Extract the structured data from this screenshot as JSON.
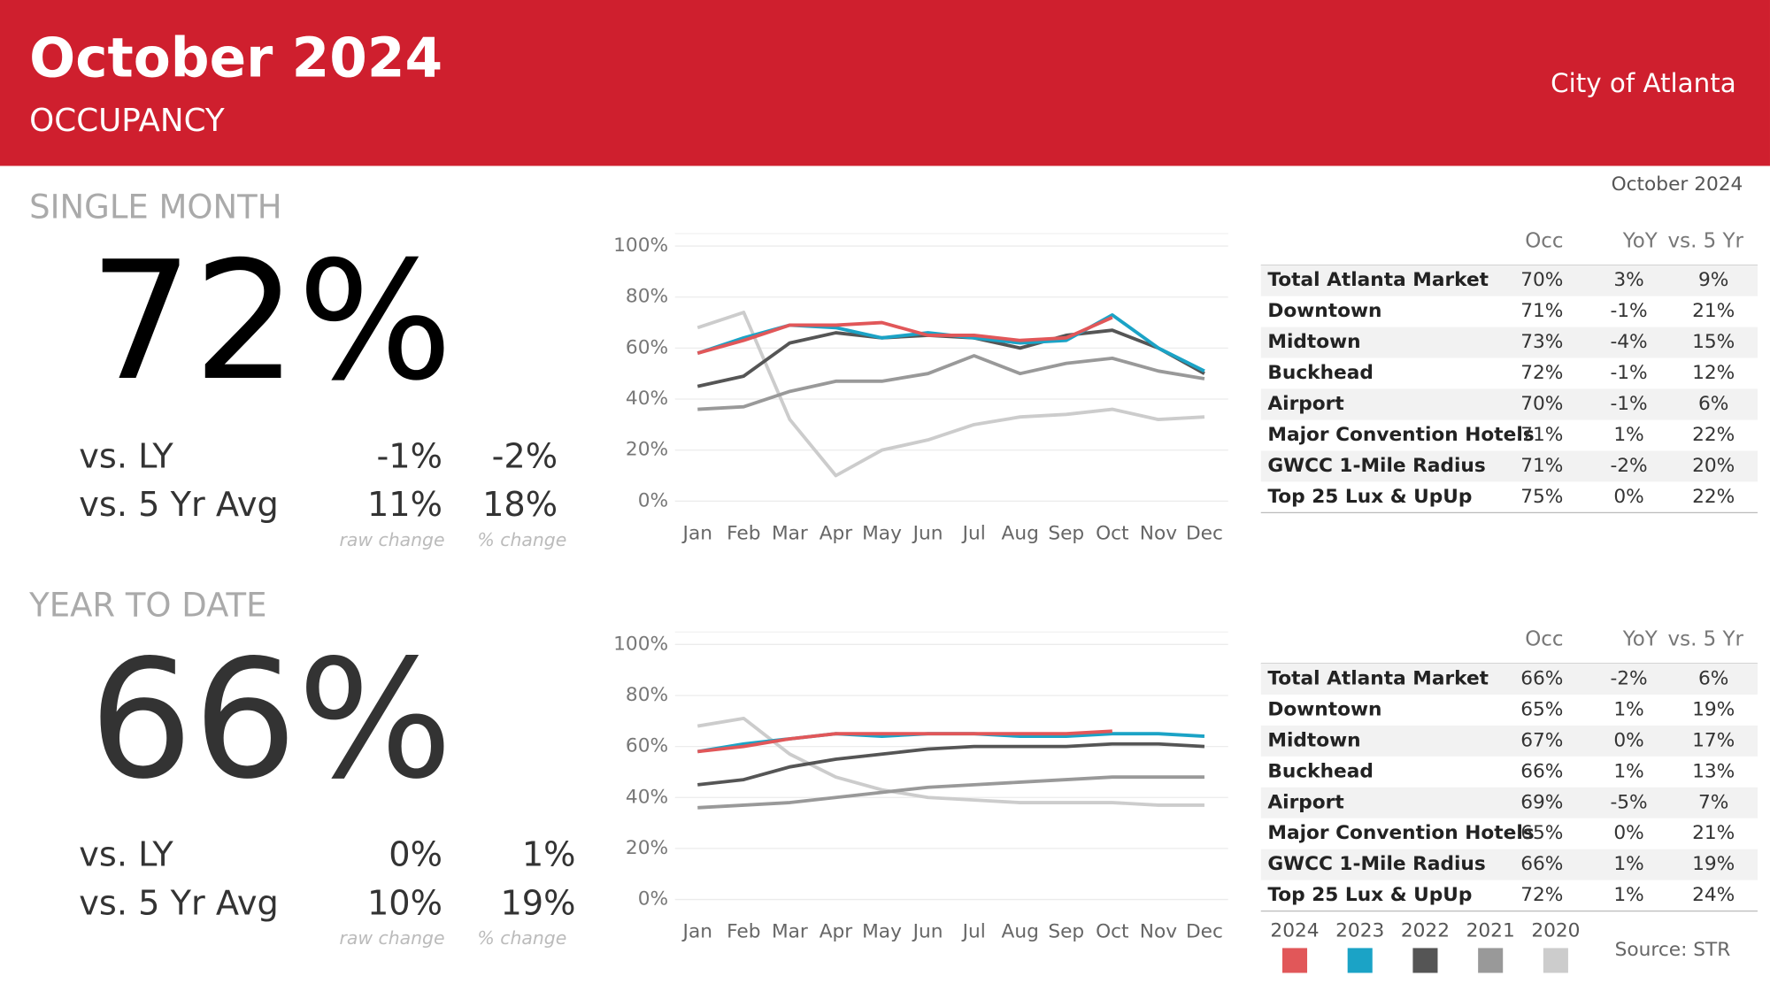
{
  "header": {
    "title": "October 2024",
    "subtitle": "OCCUPANCY",
    "location": "City of Atlanta"
  },
  "date_label": "October 2024",
  "source": "Source: STR",
  "sections": [
    {
      "heading": "SINGLE MONTH",
      "big_value": "72%",
      "rows": [
        {
          "label": "vs. LY",
          "raw": "-1%",
          "pct": "-2%"
        },
        {
          "label": "vs. 5 Yr Avg",
          "raw": "11%",
          "pct": "18%"
        }
      ],
      "raw_caption": "raw change",
      "pct_caption": "% change",
      "table": {
        "columns": [
          "Occ",
          "YoY",
          "vs. 5 Yr"
        ],
        "rows": [
          [
            "Total Atlanta Market",
            "70%",
            "3%",
            "9%"
          ],
          [
            "Downtown",
            "71%",
            "-1%",
            "21%"
          ],
          [
            "Midtown",
            "73%",
            "-4%",
            "15%"
          ],
          [
            "Buckhead",
            "72%",
            "-1%",
            "12%"
          ],
          [
            "Airport",
            "70%",
            "-1%",
            "6%"
          ],
          [
            "Major Convention Hotels",
            "71%",
            "1%",
            "22%"
          ],
          [
            "GWCC 1-Mile Radius",
            "71%",
            "-2%",
            "20%"
          ],
          [
            "Top 25 Lux & UpUp",
            "75%",
            "0%",
            "22%"
          ]
        ]
      }
    },
    {
      "heading": "YEAR TO DATE",
      "big_value": "66%",
      "rows": [
        {
          "label": "vs. LY",
          "raw": "0%",
          "pct": "1%"
        },
        {
          "label": "vs. 5 Yr Avg",
          "raw": "10%",
          "pct": "19%"
        }
      ],
      "raw_caption": "raw change",
      "pct_caption": "% change",
      "table": {
        "columns": [
          "Occ",
          "YoY",
          "vs. 5 Yr"
        ],
        "rows": [
          [
            "Total Atlanta Market",
            "66%",
            "-2%",
            "6%"
          ],
          [
            "Downtown",
            "65%",
            "1%",
            "19%"
          ],
          [
            "Midtown",
            "67%",
            "0%",
            "17%"
          ],
          [
            "Buckhead",
            "66%",
            "1%",
            "13%"
          ],
          [
            "Airport",
            "69%",
            "-5%",
            "7%"
          ],
          [
            "Major Convention Hotels",
            "65%",
            "0%",
            "21%"
          ],
          [
            "GWCC 1-Mile Radius",
            "66%",
            "1%",
            "19%"
          ],
          [
            "Top 25 Lux & UpUp",
            "72%",
            "1%",
            "24%"
          ]
        ]
      }
    }
  ],
  "chart_data": [
    {
      "type": "line",
      "categories": [
        "Jan",
        "Feb",
        "Mar",
        "Apr",
        "May",
        "Jun",
        "Jul",
        "Aug",
        "Sep",
        "Oct",
        "Nov",
        "Dec"
      ],
      "ylim": [
        0,
        100
      ],
      "yticks": [
        {
          "value": 0,
          "label": "0%"
        },
        {
          "value": 20,
          "label": "20%"
        },
        {
          "value": 40,
          "label": "40%"
        },
        {
          "value": 60,
          "label": "60%"
        },
        {
          "value": 80,
          "label": "80%"
        },
        {
          "value": 100,
          "label": "100%"
        }
      ],
      "grid": true,
      "series": [
        {
          "color": "#e15759",
          "values": [
            58,
            63,
            69,
            69,
            70,
            65,
            65,
            63,
            64,
            72,
            null,
            null
          ]
        },
        {
          "color": "#1ba3c6",
          "values": [
            58,
            64,
            69,
            68,
            64,
            66,
            64,
            62,
            63,
            73,
            60,
            51
          ]
        },
        {
          "color": "#555555",
          "values": [
            45,
            49,
            62,
            66,
            64,
            65,
            64,
            60,
            65,
            67,
            60,
            50
          ]
        },
        {
          "color": "#999999",
          "values": [
            36,
            37,
            43,
            47,
            47,
            50,
            57,
            50,
            54,
            56,
            51,
            48
          ]
        },
        {
          "color": "#cccccc",
          "values": [
            68,
            74,
            32,
            10,
            20,
            24,
            30,
            33,
            34,
            36,
            32,
            33
          ]
        }
      ]
    },
    {
      "type": "line",
      "categories": [
        "Jan",
        "Feb",
        "Mar",
        "Apr",
        "May",
        "Jun",
        "Jul",
        "Aug",
        "Sep",
        "Oct",
        "Nov",
        "Dec"
      ],
      "ylim": [
        0,
        100
      ],
      "yticks": [
        {
          "value": 0,
          "label": "0%"
        },
        {
          "value": 20,
          "label": "20%"
        },
        {
          "value": 40,
          "label": "40%"
        },
        {
          "value": 60,
          "label": "60%"
        },
        {
          "value": 80,
          "label": "80%"
        },
        {
          "value": 100,
          "label": "100%"
        }
      ],
      "grid": true,
      "series": [
        {
          "name": "2024",
          "color": "#e15759",
          "values": [
            58,
            60,
            63,
            65,
            65,
            65,
            65,
            65,
            65,
            66,
            null,
            null
          ]
        },
        {
          "name": "2023",
          "color": "#1ba3c6",
          "values": [
            58,
            61,
            63,
            65,
            64,
            65,
            65,
            64,
            64,
            65,
            65,
            64
          ]
        },
        {
          "name": "2022",
          "color": "#555555",
          "values": [
            45,
            47,
            52,
            55,
            57,
            59,
            60,
            60,
            60,
            61,
            61,
            60
          ]
        },
        {
          "name": "2021",
          "color": "#999999",
          "values": [
            36,
            37,
            38,
            40,
            42,
            44,
            45,
            46,
            47,
            48,
            48,
            48
          ]
        },
        {
          "name": "2020",
          "color": "#cccccc",
          "values": [
            68,
            71,
            57,
            48,
            43,
            40,
            39,
            38,
            38,
            38,
            37,
            37
          ]
        }
      ]
    }
  ]
}
